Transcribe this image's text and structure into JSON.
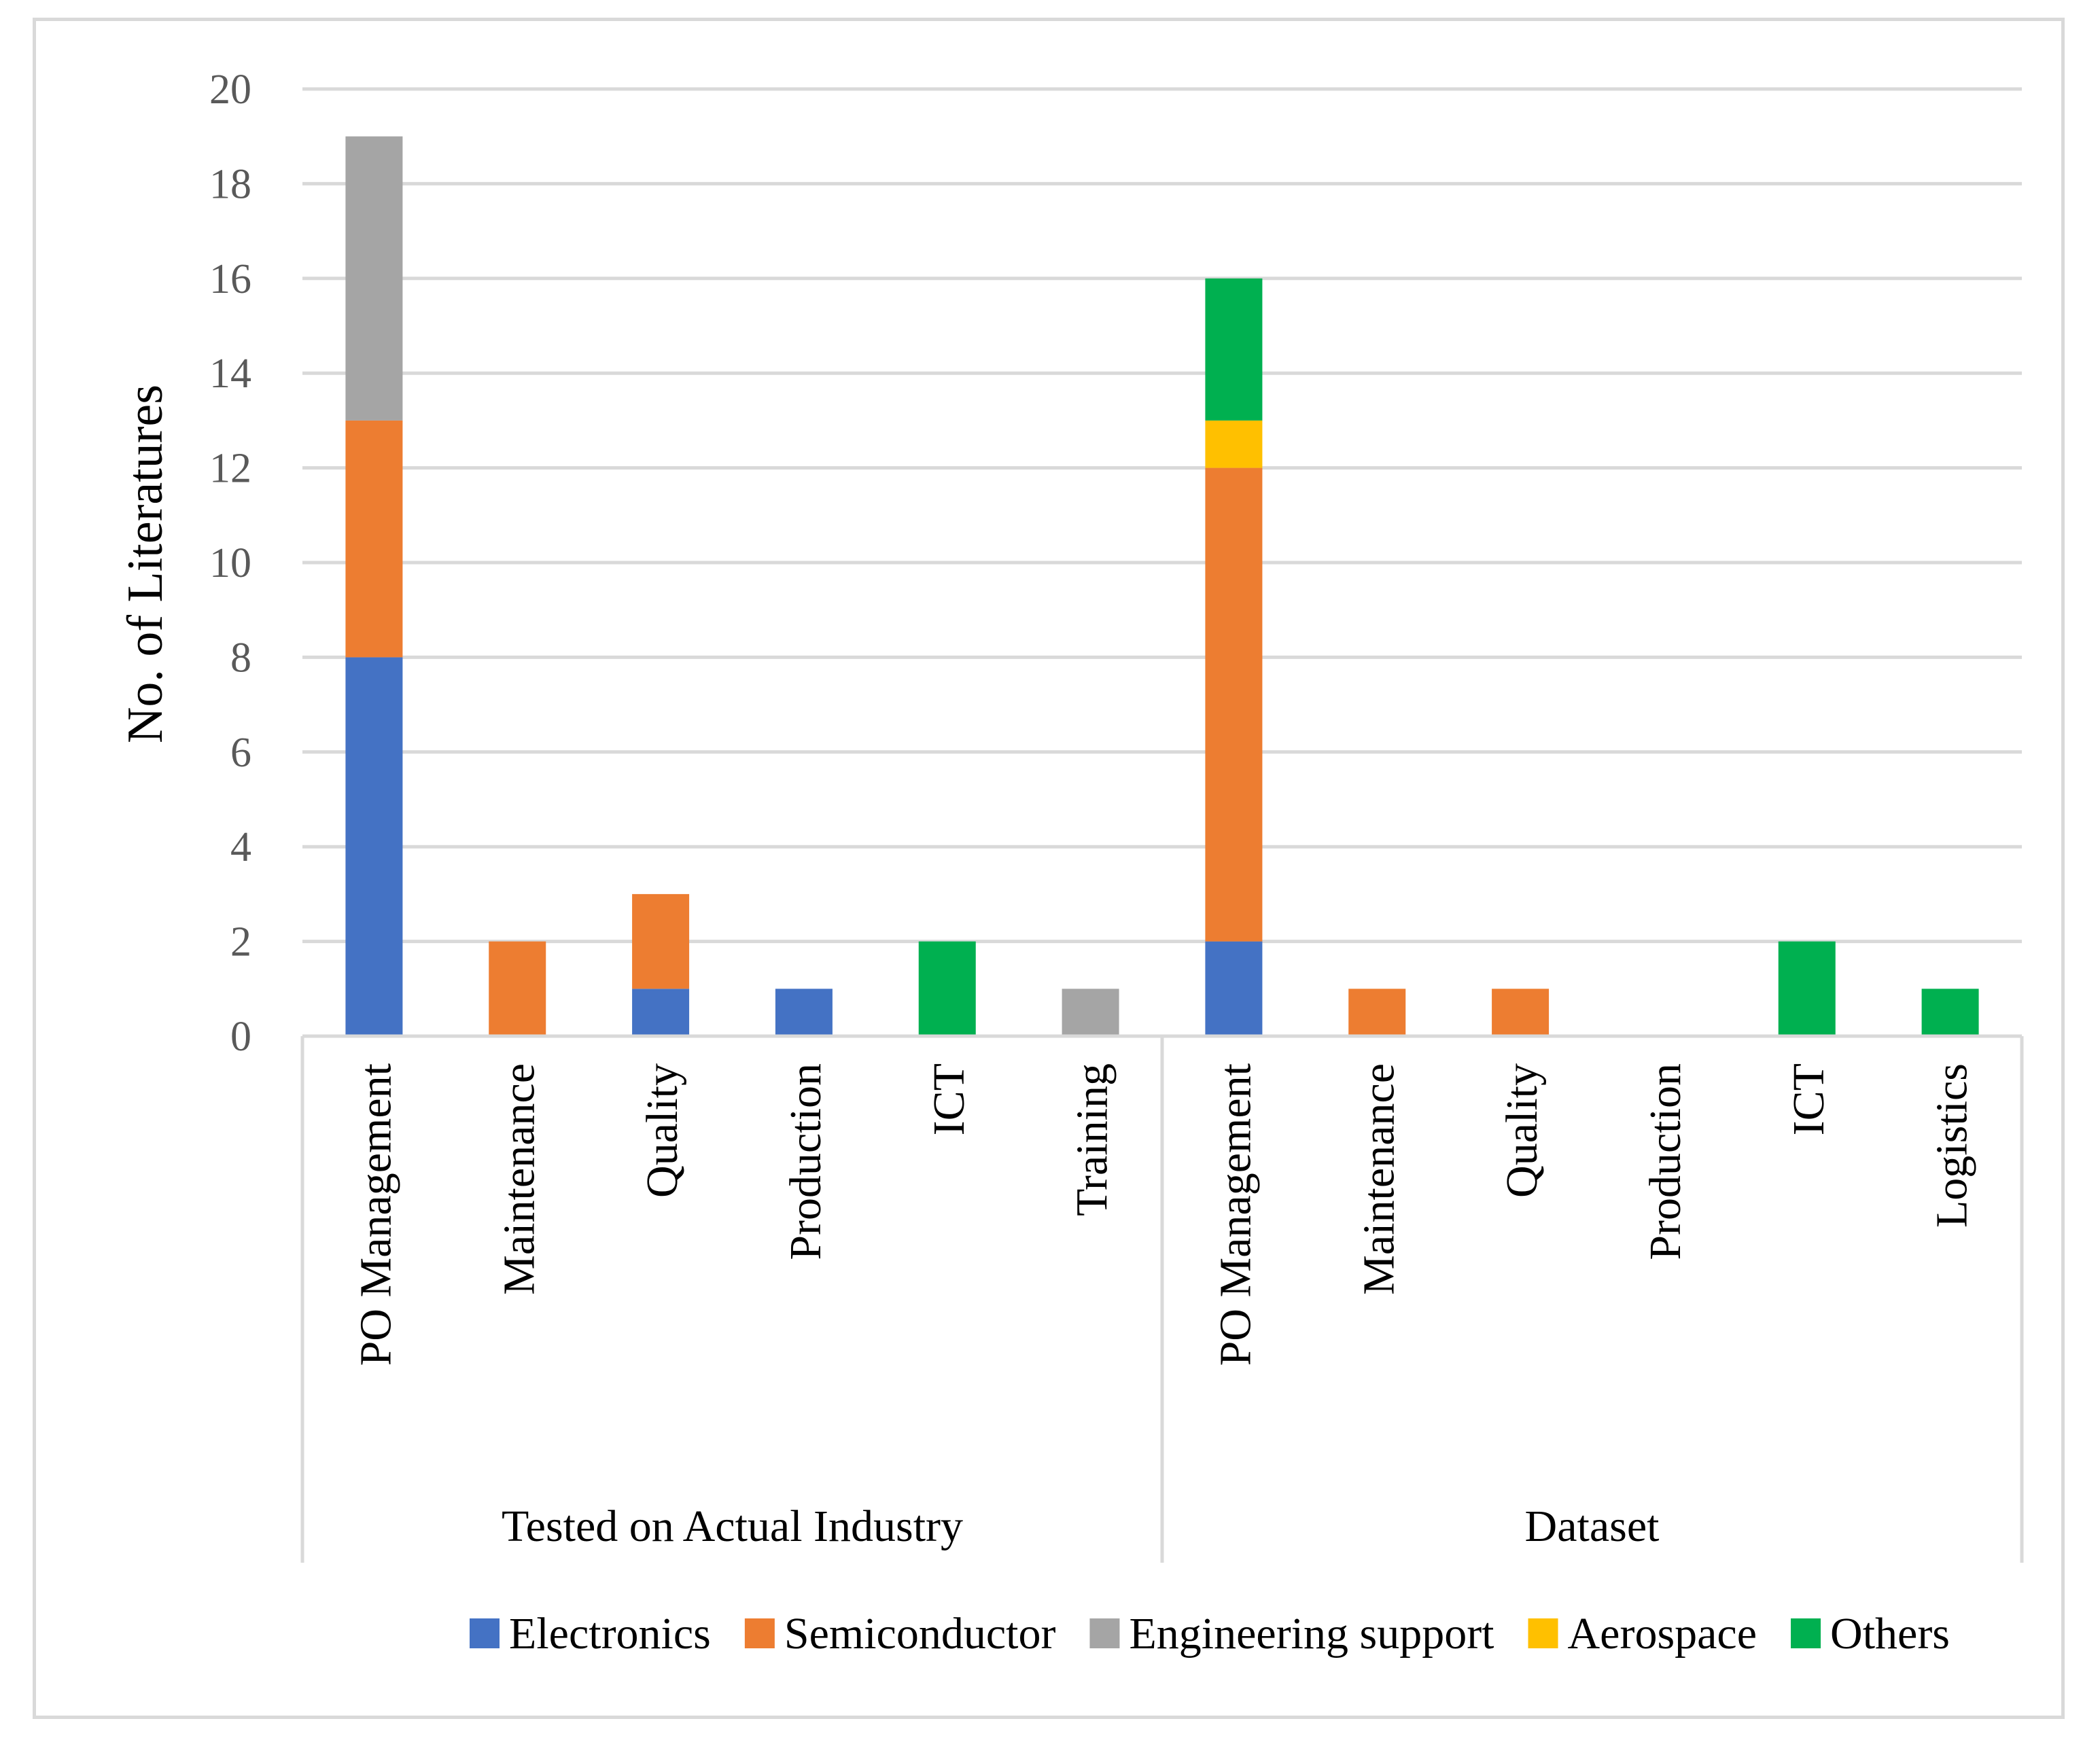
{
  "chart_data": {
    "type": "bar",
    "stacked": true,
    "title": "",
    "ylabel": "No. of Literatures",
    "xlabel": "",
    "ylim": [
      0,
      20
    ],
    "yticks": [
      0,
      2,
      4,
      6,
      8,
      10,
      12,
      14,
      16,
      18,
      20
    ],
    "grid": true,
    "legend_position": "bottom",
    "groups": [
      {
        "label": "Tested on Actual Industry",
        "categories": [
          "PO Management",
          "Maintenance",
          "Quality",
          "Production",
          "ICT",
          "Training"
        ]
      },
      {
        "label": "Dataset",
        "categories": [
          "PO Management",
          "Maintenance",
          "Quality",
          "Production",
          "ICT",
          "Logistics"
        ]
      }
    ],
    "categories": [
      "PO Management",
      "Maintenance",
      "Quality",
      "Production",
      "ICT",
      "Training",
      "PO Management",
      "Maintenance",
      "Quality",
      "Production",
      "ICT",
      "Logistics"
    ],
    "series": [
      {
        "name": "Electronics",
        "color": "#4472c4",
        "values": [
          8,
          0,
          1,
          1,
          0,
          0,
          2,
          0,
          0,
          0,
          0,
          0
        ]
      },
      {
        "name": "Semiconductor",
        "color": "#ed7d31",
        "values": [
          5,
          2,
          2,
          0,
          0,
          0,
          10,
          1,
          1,
          0,
          0,
          0
        ]
      },
      {
        "name": "Engineering support",
        "color": "#a5a5a5",
        "values": [
          6,
          0,
          0,
          0,
          0,
          1,
          0,
          0,
          0,
          0,
          0,
          0
        ]
      },
      {
        "name": "Aerospace",
        "color": "#ffc000",
        "values": [
          0,
          0,
          0,
          0,
          0,
          0,
          1,
          0,
          0,
          0,
          0,
          0
        ]
      },
      {
        "name": "Others",
        "color": "#00b050",
        "values": [
          0,
          0,
          0,
          0,
          2,
          0,
          3,
          0,
          0,
          0,
          2,
          1
        ]
      }
    ]
  }
}
